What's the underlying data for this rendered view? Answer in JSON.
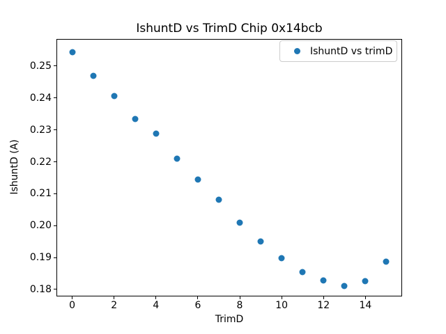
{
  "chart_data": {
    "type": "scatter",
    "title": "IshuntD vs TrimD Chip 0x14bcb",
    "xlabel": "TrimD",
    "ylabel": "IshuntD (A)",
    "grid": false,
    "legend_position": "upper right",
    "background_color": "#ffffff",
    "xlim": [
      -0.75,
      15.75
    ],
    "ylim": [
      0.1778,
      0.2585
    ],
    "xticks": {
      "values": [
        0,
        2,
        4,
        6,
        8,
        10,
        12,
        14
      ],
      "labels": [
        "0",
        "2",
        "4",
        "6",
        "8",
        "10",
        "12",
        "14"
      ]
    },
    "yticks": {
      "values": [
        0.18,
        0.19,
        0.2,
        0.21,
        0.22,
        0.23,
        0.24,
        0.25
      ],
      "labels": [
        "0.18",
        "0.19",
        "0.20",
        "0.21",
        "0.22",
        "0.23",
        "0.24",
        "0.25"
      ]
    },
    "series": [
      {
        "name": "IshuntD vs trimD",
        "color": "#1f77b4",
        "x": [
          0,
          1,
          2,
          3,
          4,
          5,
          6,
          7,
          8,
          9,
          10,
          11,
          12,
          13,
          14,
          15
        ],
        "y": [
          0.2543,
          0.247,
          0.2406,
          0.2335,
          0.2288,
          0.2209,
          0.2145,
          0.2081,
          0.2009,
          0.195,
          0.1897,
          0.1854,
          0.1828,
          0.1811,
          0.1827,
          0.1886
        ]
      }
    ]
  }
}
